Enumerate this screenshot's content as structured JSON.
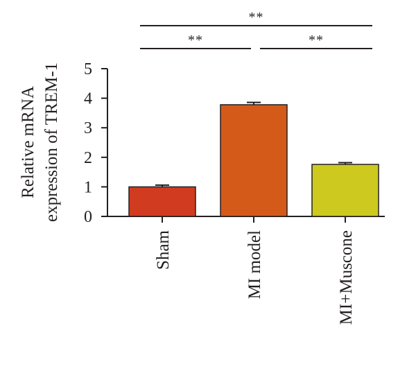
{
  "chart_data": {
    "type": "bar",
    "categories": [
      "Sham",
      "MI model",
      "MI+Muscone"
    ],
    "values": [
      1.0,
      3.78,
      1.76
    ],
    "errors": [
      0.06,
      0.08,
      0.06
    ],
    "ylabel": "Relative mRNA expression of TREM-1",
    "ylabel_lines": [
      "Relative mRNA",
      "expression of TREM-1"
    ],
    "ylim": [
      0,
      5
    ],
    "yticks": [
      "0",
      "1",
      "2",
      "3",
      "4",
      "5"
    ],
    "grid": false,
    "bar_colors": [
      "#d13b1f",
      "#d45a1a",
      "#cdc91f"
    ],
    "axis_color": "#231f20",
    "significance": [
      {
        "from": 0,
        "to": 1,
        "label": "**"
      },
      {
        "from": 1,
        "to": 2,
        "label": "**"
      },
      {
        "from": 0,
        "to": 2,
        "label": "**"
      }
    ]
  }
}
